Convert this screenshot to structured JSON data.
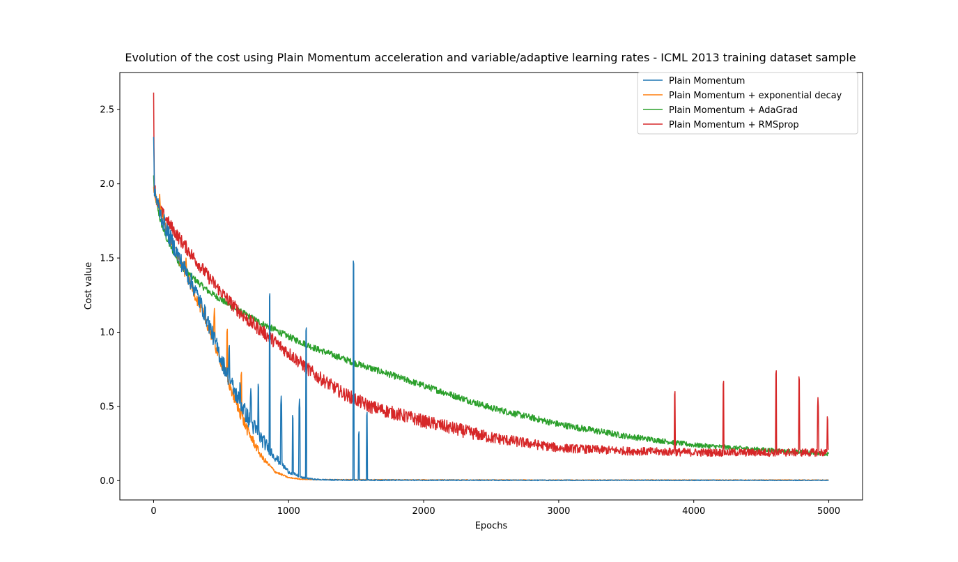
{
  "chart_data": {
    "type": "line",
    "title": "Evolution of the cost using Plain Momentum acceleration and variable/adaptive learning rates - ICML 2013 training dataset sample",
    "xlabel": "Epochs",
    "ylabel": "Cost value",
    "xlim": [
      -250,
      5250
    ],
    "ylim": [
      -0.13,
      2.75
    ],
    "xticks": [
      0,
      1000,
      2000,
      3000,
      4000,
      5000
    ],
    "xtick_labels": [
      "0",
      "1000",
      "2000",
      "3000",
      "4000",
      "5000"
    ],
    "yticks": [
      0.0,
      0.5,
      1.0,
      1.5,
      2.0,
      2.5
    ],
    "ytick_labels": [
      "0.0",
      "0.5",
      "1.0",
      "1.5",
      "2.0",
      "2.5"
    ],
    "grid": false,
    "legend_position": "top-right",
    "series": [
      {
        "name": "Plain Momentum",
        "color": "#1f77b4",
        "x": [
          0,
          5,
          20,
          50,
          100,
          200,
          300,
          400,
          500,
          600,
          700,
          800,
          900,
          1000,
          1100,
          1200,
          1300,
          1500,
          2000,
          3000,
          4000,
          5000
        ],
        "y": [
          2.35,
          1.97,
          1.9,
          1.8,
          1.68,
          1.48,
          1.3,
          1.08,
          0.82,
          0.6,
          0.42,
          0.28,
          0.16,
          0.06,
          0.02,
          0.008,
          0.005,
          0.004,
          0.003,
          0.002,
          0.002,
          0.002
        ],
        "noise": 0.06,
        "spikes": [
          [
            560,
            0.93
          ],
          [
            640,
            0.68
          ],
          [
            720,
            0.62
          ],
          [
            775,
            0.67
          ],
          [
            860,
            1.28
          ],
          [
            945,
            0.57
          ],
          [
            1030,
            0.46
          ],
          [
            1080,
            0.55
          ],
          [
            1130,
            1.05
          ],
          [
            1480,
            1.5
          ],
          [
            1520,
            0.35
          ],
          [
            1580,
            0.48
          ]
        ]
      },
      {
        "name": "Plain Momentum + exponential decay",
        "color": "#ff7f0e",
        "x": [
          0,
          5,
          20,
          50,
          100,
          200,
          300,
          400,
          500,
          600,
          700,
          800,
          900,
          1000,
          1100,
          1200,
          1500,
          2000,
          3000,
          4000,
          5000
        ],
        "y": [
          2.0,
          1.95,
          1.9,
          1.82,
          1.68,
          1.47,
          1.27,
          1.05,
          0.8,
          0.55,
          0.33,
          0.16,
          0.06,
          0.02,
          0.01,
          0.007,
          0.006,
          0.005,
          0.004,
          0.004,
          0.004
        ],
        "noise": 0.04,
        "spikes": [
          [
            45,
            1.93
          ],
          [
            240,
            1.5
          ],
          [
            450,
            1.16
          ],
          [
            545,
            1.04
          ],
          [
            650,
            0.75
          ]
        ]
      },
      {
        "name": "Plain Momentum + AdaGrad",
        "color": "#2ca02c",
        "x": [
          0,
          5,
          20,
          50,
          100,
          200,
          300,
          400,
          500,
          600,
          800,
          1000,
          1200,
          1500,
          2000,
          2500,
          3000,
          3500,
          4000,
          5000
        ],
        "y": [
          2.05,
          1.95,
          1.88,
          1.75,
          1.62,
          1.45,
          1.36,
          1.28,
          1.22,
          1.16,
          1.06,
          0.97,
          0.89,
          0.79,
          0.64,
          0.49,
          0.38,
          0.3,
          0.24,
          0.18
        ],
        "noise": 0.022,
        "spikes": []
      },
      {
        "name": "Plain Momentum + RMSprop",
        "color": "#d62728",
        "x": [
          0,
          5,
          20,
          50,
          100,
          200,
          300,
          400,
          500,
          600,
          700,
          800,
          1000,
          1200,
          1400,
          1600,
          2000,
          2500,
          3000,
          3500,
          4000,
          4500,
          5000
        ],
        "y": [
          2.66,
          2.0,
          1.9,
          1.82,
          1.75,
          1.62,
          1.5,
          1.38,
          1.27,
          1.17,
          1.08,
          1.01,
          0.86,
          0.71,
          0.59,
          0.5,
          0.4,
          0.29,
          0.22,
          0.2,
          0.19,
          0.19,
          0.19
        ],
        "noise": 0.045,
        "spikes": [
          [
            3860,
            0.62
          ],
          [
            4220,
            0.69
          ],
          [
            4610,
            0.76
          ],
          [
            4780,
            0.72
          ],
          [
            4920,
            0.56
          ],
          [
            4990,
            0.45
          ]
        ]
      }
    ]
  }
}
